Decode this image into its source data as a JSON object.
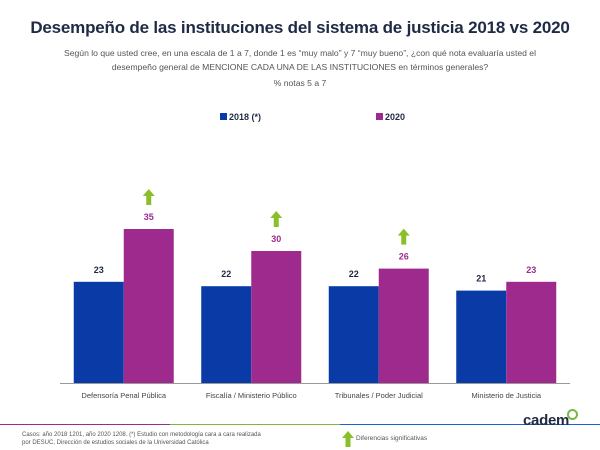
{
  "header": {
    "title": "Desempeño de las instituciones del sistema de justicia 2018 vs 2020",
    "subtitle_line1": "Según lo que usted cree, en una escala de 1 a 7, donde 1 es “muy malo” y 7 “muy bueno”, ¿con qué nota evaluaría usted el",
    "subtitle_line2": "desempeño general de MENCIONE CADA UNA DE LAS INSTITUCIONES en términos generales?",
    "subtitle_line3": "% notas 5 a 7"
  },
  "chart_data": {
    "type": "bar",
    "categories": [
      "Defensoría Penal Pública",
      "Fiscalía / Ministerio Público",
      "Tribunales / Poder Judicial",
      "Ministerio de Justicia"
    ],
    "series": [
      {
        "name": "2018 (*)",
        "values": [
          23,
          22,
          22,
          21
        ],
        "color": "#0a3aa6"
      },
      {
        "name": "2020",
        "values": [
          35,
          30,
          26,
          23
        ],
        "color": "#9e2a8e"
      }
    ],
    "significant_increase": [
      true,
      true,
      true,
      false
    ],
    "significance_color": "#8bbf2a",
    "ylim": [
      0,
      40
    ],
    "grid": false,
    "legend": "top-center",
    "data_labels": true
  },
  "footer": {
    "notes_line1": "Casos:  año 2018 1201, año 2020 1208. (*) Estudio con metodología cara a cara realizada",
    "notes_line2": "por DESUC, Dirección de estudios sociales de la Universidad Católica",
    "significance_label": "Diferencias significativas",
    "logo": "cadem",
    "line_colors": [
      "#9e2a8e",
      "#7ab648",
      "#1b5fd6"
    ]
  }
}
